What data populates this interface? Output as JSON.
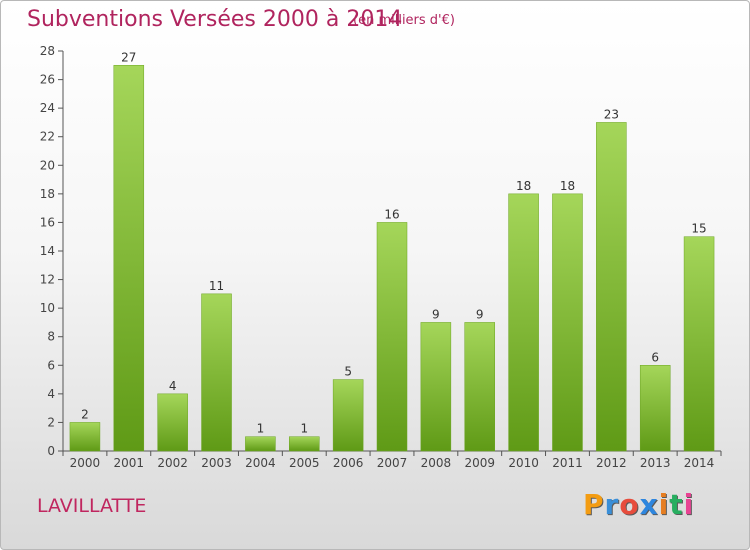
{
  "title": "Subventions Versées 2000 à 2014",
  "unit_note": "(en milliers d'€)",
  "commune": "LAVILLATTE",
  "brand": {
    "letters": [
      "P",
      "r",
      "o",
      "x",
      "i",
      "t",
      "i"
    ],
    "colors": [
      "#f39c12",
      "#3a8fd8",
      "#e74c3c",
      "#2e86de",
      "#e67e22",
      "#27ae60",
      "#e84393"
    ]
  },
  "colors": {
    "bar": "#7dbb2c",
    "bar_dark": "#5f9a16",
    "bar_light": "#a5d65a",
    "title": "#b0245e",
    "axis": "#444444"
  },
  "chart_data": {
    "type": "bar",
    "categories": [
      "2000",
      "2001",
      "2002",
      "2003",
      "2004",
      "2005",
      "2006",
      "2007",
      "2008",
      "2009",
      "2010",
      "2011",
      "2012",
      "2013",
      "2014"
    ],
    "values": [
      2,
      27,
      4,
      11,
      1,
      1,
      5,
      16,
      9,
      9,
      18,
      18,
      23,
      6,
      15
    ],
    "ylim": [
      0,
      28
    ],
    "yticks": [
      0,
      2,
      4,
      6,
      8,
      10,
      12,
      14,
      16,
      18,
      20,
      22,
      24,
      26,
      28
    ],
    "grid": false,
    "data_labels": true
  }
}
